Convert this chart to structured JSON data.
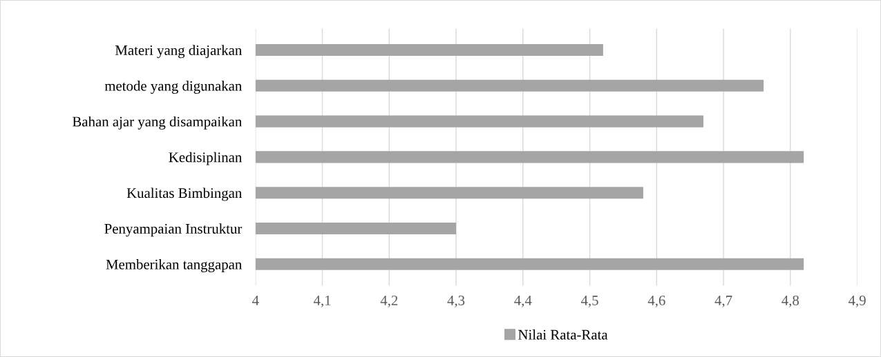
{
  "chart_data": {
    "type": "bar",
    "orientation": "horizontal",
    "categories": [
      "Materi yang diajarkan",
      "metode yang digunakan",
      "Bahan ajar yang disampaikan",
      "Kedisiplinan",
      "Kualitas Bimbingan",
      "Penyampaian Instruktur",
      "Memberikan tanggapan"
    ],
    "series": [
      {
        "name": "Nilai Rata-Rata",
        "color": "#a5a5a5",
        "values": [
          4.52,
          4.76,
          4.67,
          4.82,
          4.58,
          4.3,
          4.82
        ]
      }
    ],
    "xlim": [
      4,
      4.9
    ],
    "xticks": [
      4,
      {
        "value": 4.1,
        "label": "4,1"
      },
      {
        "value": 4.2,
        "label": "4,2"
      },
      {
        "value": 4.3,
        "label": "4,3"
      },
      {
        "value": 4.4,
        "label": "4,4"
      },
      {
        "value": 4.5,
        "label": "4,5"
      },
      {
        "value": 4.6,
        "label": "4,6"
      },
      {
        "value": 4.7,
        "label": "4,7"
      },
      {
        "value": 4.8,
        "label": "4,8"
      },
      {
        "value": 4.9,
        "label": "4,9"
      }
    ],
    "grid": "x",
    "legend": "bottom"
  }
}
